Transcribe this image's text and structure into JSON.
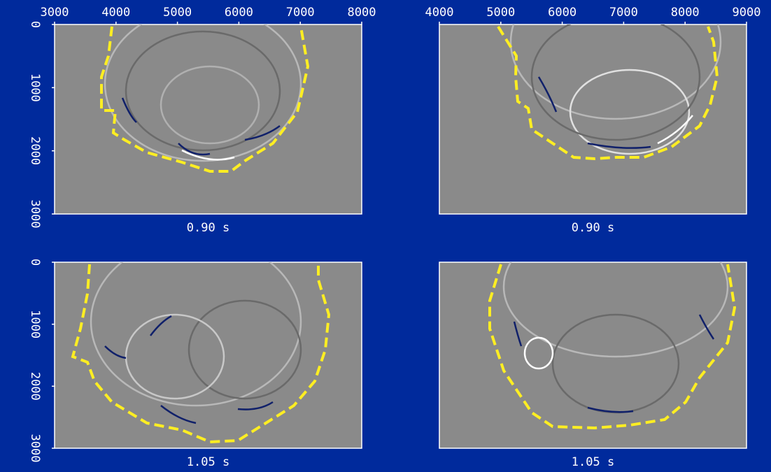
{
  "chart_data": [
    {
      "type": "image",
      "title": "0.90 s",
      "xlim": [
        3000,
        8000
      ],
      "xticks": [
        3000,
        4000,
        5000,
        6000,
        7000,
        8000
      ],
      "ylim": [
        0,
        3000
      ],
      "yticks": [
        0,
        1000,
        2000,
        3000
      ]
    },
    {
      "type": "image",
      "title": "0.90 s",
      "xlim": [
        4000,
        9000
      ],
      "xticks": [
        4000,
        5000,
        6000,
        7000,
        8000,
        9000
      ]
    },
    {
      "type": "image",
      "title": "1.05 s",
      "ylim": [
        0,
        3000
      ],
      "yticks": [
        0,
        1000,
        2000,
        3000
      ]
    },
    {
      "type": "image",
      "title": "1.05 s"
    }
  ]
}
